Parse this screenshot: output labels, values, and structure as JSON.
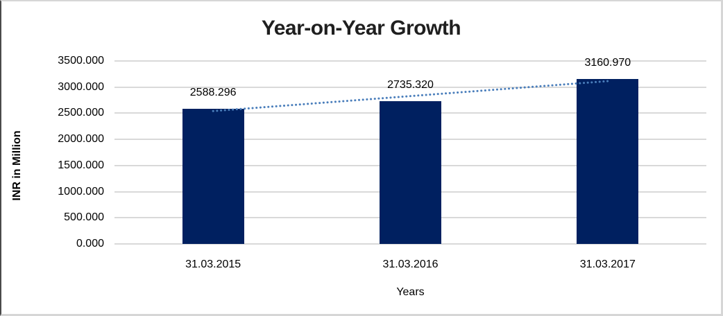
{
  "frame": {
    "background": "#ffffff",
    "border_color": "#d6d6d6",
    "left_edge_color": "#4a4a4a"
  },
  "chart_data": {
    "type": "bar",
    "title": "Year-on-Year Growth",
    "xlabel": "Years",
    "ylabel": "INR in Million",
    "categories": [
      "31.03.2015",
      "31.03.2016",
      "31.03.2017"
    ],
    "values": [
      2588.296,
      2735.32,
      3160.97
    ],
    "data_labels": [
      "2588.296",
      "2735.320",
      "3160.970"
    ],
    "y_ticks": [
      "3500.000",
      "3000.000",
      "2500.000",
      "2000.000",
      "1500.000",
      "1000.000",
      "500.000",
      "0.000"
    ],
    "ylim": [
      0,
      3500
    ],
    "grid": "horizontal",
    "gridline_color": "#d9d9d9",
    "bar_color": "#002060",
    "label_color": "#000000",
    "title_color": "#1f1f1f",
    "trendline": {
      "type": "linear",
      "style": "dotted",
      "color": "#4a7ebb"
    },
    "legend": "none"
  }
}
